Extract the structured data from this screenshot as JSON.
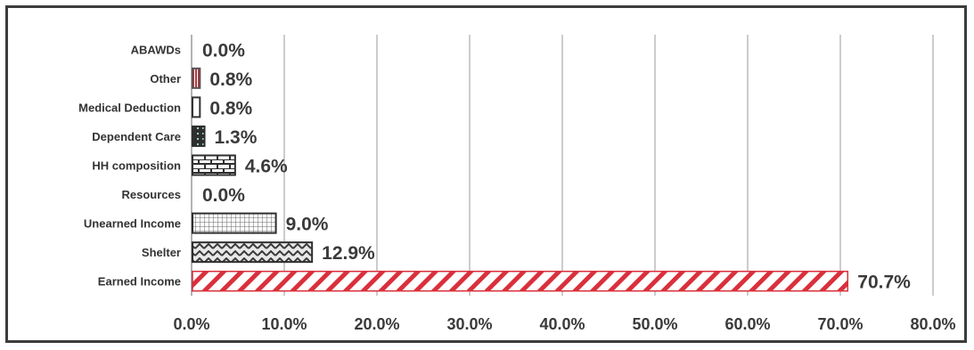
{
  "chart_data": {
    "type": "bar",
    "orientation": "horizontal",
    "categories": [
      "ABAWDs",
      "Other",
      "Medical Deduction",
      "Dependent Care",
      "HH composition",
      "Resources",
      "Unearned Income",
      "Shelter",
      "Earned Income"
    ],
    "values": [
      0.0,
      0.8,
      0.8,
      1.3,
      4.6,
      0.0,
      9.0,
      12.9,
      70.7
    ],
    "value_labels": [
      "0.0%",
      "0.8%",
      "0.8%",
      "1.3%",
      "4.6%",
      "0.0%",
      "9.0%",
      "12.9%",
      "70.7%"
    ],
    "xlim": [
      0,
      80
    ],
    "xticks": [
      0,
      10,
      20,
      30,
      40,
      50,
      60,
      70,
      80
    ],
    "xtick_labels": [
      "0.0%",
      "10.0%",
      "20.0%",
      "30.0%",
      "40.0%",
      "50.0%",
      "60.0%",
      "70.0%",
      "80.0%"
    ],
    "grid": "vertical",
    "title": "",
    "xlabel": "",
    "ylabel": "",
    "bar_patterns": [
      "none",
      "vertical-red",
      "plain",
      "dark-grid",
      "brick",
      "none",
      "grid",
      "zigzag",
      "diagonal-red"
    ],
    "colors": {
      "red": "#d9303c",
      "dark": "#2e2e2e",
      "grid": "#9a9a9a",
      "text": "#3a3a3a"
    }
  }
}
